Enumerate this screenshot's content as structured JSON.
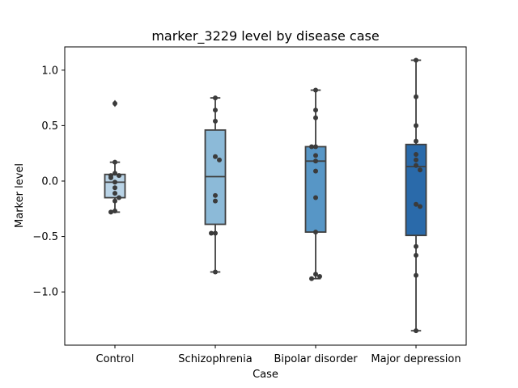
{
  "chart_data": {
    "type": "box",
    "title": "marker_3229 level by disease case",
    "xlabel": "Case",
    "ylabel": "Marker level",
    "ylim": [
      -1.48,
      1.21
    ],
    "yticks": [
      -1.0,
      -0.5,
      0.0,
      0.5,
      1.0
    ],
    "ytick_labels": [
      "−1.0",
      "−0.5",
      "0.0",
      "0.5",
      "1.0"
    ],
    "categories": [
      "Control",
      "Schizophrenia",
      "Bipolar disorder",
      "Major depression"
    ],
    "box_colors": [
      "#b9d3e6",
      "#8cbad8",
      "#5796c6",
      "#2a6aaa"
    ],
    "point_color": "#3b3b3b",
    "boxes": [
      {
        "q1": -0.15,
        "median": -0.01,
        "q3": 0.06,
        "whisker_low": -0.28,
        "whisker_high": 0.17,
        "outliers": [
          0.7
        ]
      },
      {
        "q1": -0.39,
        "median": 0.04,
        "q3": 0.46,
        "whisker_low": -0.82,
        "whisker_high": 0.75,
        "outliers": []
      },
      {
        "q1": -0.46,
        "median": 0.18,
        "q3": 0.31,
        "whisker_low": -0.88,
        "whisker_high": 0.82,
        "outliers": []
      },
      {
        "q1": -0.49,
        "median": 0.13,
        "q3": 0.33,
        "whisker_low": -1.35,
        "whisker_high": 1.09,
        "outliers": []
      }
    ],
    "points": [
      [
        0.7,
        0.17,
        0.07,
        0.05,
        0.05,
        0.03,
        -0.01,
        -0.06,
        -0.11,
        -0.15,
        -0.18,
        -0.27,
        -0.28
      ],
      [
        0.75,
        0.64,
        0.54,
        0.22,
        0.19,
        -0.13,
        -0.18,
        -0.47,
        -0.47,
        -0.82
      ],
      [
        0.82,
        0.64,
        0.57,
        0.31,
        0.31,
        0.23,
        0.18,
        0.09,
        -0.15,
        -0.46,
        -0.84,
        -0.86,
        -0.88
      ],
      [
        1.09,
        0.76,
        0.5,
        0.36,
        0.24,
        0.19,
        0.14,
        0.1,
        -0.21,
        -0.23,
        -0.59,
        -0.67,
        -0.85,
        -1.35
      ]
    ]
  }
}
